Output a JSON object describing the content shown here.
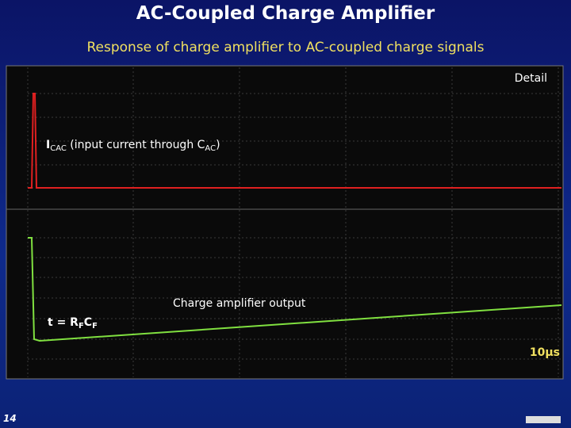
{
  "header": {
    "title": "AC-Coupled Charge Amplifier",
    "subtitle": "Response of charge amplifier to AC-coupled charge signals"
  },
  "plot": {
    "detail": "Detail",
    "input_label": [
      "I",
      "CAC",
      " (input current through C",
      "AC",
      ")"
    ],
    "output_label": "Charge amplifier output",
    "tau_label": [
      "t = R",
      "F",
      "C",
      "F"
    ],
    "scale_label": "10μs"
  },
  "footer": {
    "page": "14"
  }
}
